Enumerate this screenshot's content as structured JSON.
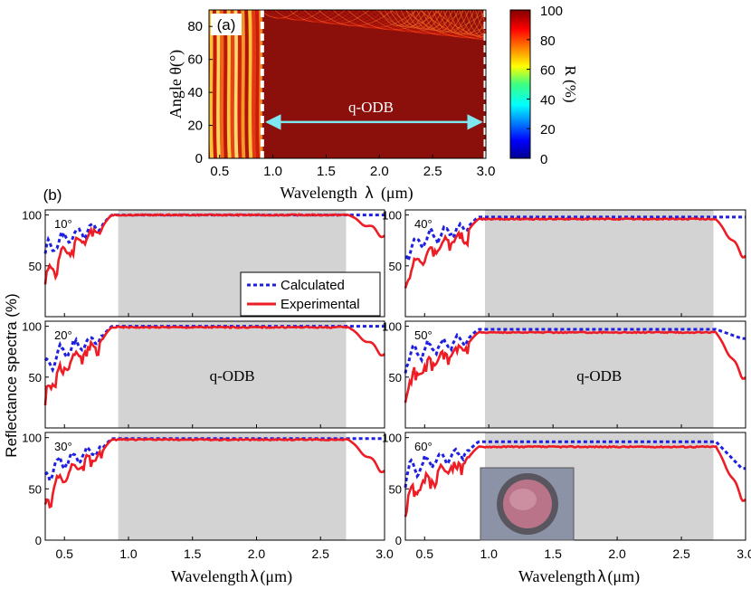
{
  "chart_data": [
    {
      "panel": "(a)",
      "type": "heatmap",
      "panel_label": "(a)",
      "xlabel": "Wavelength",
      "xlabel_symbol": "λ",
      "xlabel_unit": "(μm)",
      "ylabel": "Angle θ(°)",
      "xlim": [
        0.4,
        3.0
      ],
      "ylim": [
        0,
        90
      ],
      "xticks": [
        "0.5",
        "1.0",
        "1.5",
        "2.0",
        "2.5",
        "3.0"
      ],
      "yticks": [
        "0",
        "20",
        "40",
        "60",
        "80"
      ],
      "colorbar": {
        "label": "R (%)",
        "ticks": [
          "0",
          "20",
          "40",
          "60",
          "80",
          "100"
        ],
        "range": [
          0,
          100
        ]
      },
      "annotation": "q-ODB",
      "qodb_range_um": [
        0.9,
        3.0
      ],
      "dashed_boundaries_um": [
        0.9,
        3.0
      ]
    },
    {
      "panel": "(b)",
      "type": "line",
      "panel_label": "(b)",
      "ylabel": "Reflectance spectra (%)",
      "xlabel": "Wavelength",
      "xlabel_symbol": "λ",
      "xlabel_unit": "(μm)",
      "xlim": [
        0.35,
        3.0
      ],
      "ylim": [
        0,
        105
      ],
      "xticks": [
        "0.5",
        "1.0",
        "1.5",
        "2.0",
        "2.5",
        "3.0"
      ],
      "yticks": [
        "0",
        "50",
        "100"
      ],
      "legend": {
        "position": "right",
        "entries": [
          "Calculated",
          "Experimental"
        ]
      },
      "series_colors": {
        "Calculated": "#1f1fe0",
        "Experimental": "#ee1c25"
      },
      "band_label": "q-ODB",
      "subplots": [
        {
          "angle": "10°",
          "column": "left",
          "band": [
            0.92,
            2.7
          ],
          "calc_level": 100,
          "exp_level": 100,
          "exp_tail": 82,
          "calc_tail": 100,
          "exp_start": 28
        },
        {
          "angle": "20°",
          "column": "left",
          "band": [
            0.92,
            2.7
          ],
          "calc_level": 100,
          "exp_level": 99,
          "exp_tail": 75,
          "calc_tail": 100,
          "exp_start": 25
        },
        {
          "angle": "30°",
          "column": "left",
          "band": [
            0.92,
            2.7
          ],
          "calc_level": 99,
          "exp_level": 98,
          "exp_tail": 70,
          "calc_tail": 99,
          "exp_start": 30
        },
        {
          "angle": "40°",
          "column": "right",
          "band": [
            0.97,
            2.75
          ],
          "calc_level": 98,
          "exp_level": 96,
          "exp_tail": 62,
          "calc_tail": 98,
          "exp_start": 30
        },
        {
          "angle": "50°",
          "column": "right",
          "band": [
            0.97,
            2.75
          ],
          "calc_level": 97,
          "exp_level": 94,
          "exp_tail": 52,
          "calc_tail": 88,
          "exp_start": 33
        },
        {
          "angle": "60°",
          "column": "right",
          "band": [
            0.97,
            2.75
          ],
          "calc_level": 96,
          "exp_level": 91,
          "exp_tail": 42,
          "calc_tail": 70,
          "exp_start": 30
        }
      ]
    }
  ]
}
